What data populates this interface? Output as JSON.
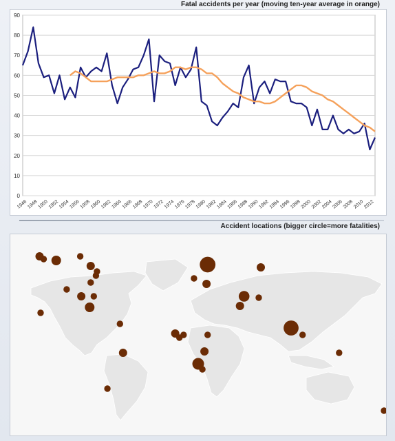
{
  "chart_title": "Fatal accidents per year (moving ten-year average in orange)",
  "map_title": "Accident locations (bigger circle=more fatalities)",
  "colors": {
    "annual_line": "#1b1f7e",
    "average_line": "#f5a15b",
    "grid": "#d8d8d8",
    "map_land": "#e6e6e6",
    "map_ocean": "#f7f7f7",
    "bubble": "#6b2c05"
  },
  "chart_data": [
    {
      "type": "line",
      "title": "Fatal accidents per year (moving ten-year average in orange)",
      "xlabel": "",
      "ylabel": "",
      "ylim": [
        0,
        90
      ],
      "yticks": [
        0,
        10,
        20,
        30,
        40,
        50,
        60,
        70,
        80,
        90
      ],
      "xlim": [
        1946,
        2013
      ],
      "xticks": [
        1946,
        1948,
        1950,
        1952,
        1954,
        1956,
        1958,
        1960,
        1962,
        1964,
        1966,
        1968,
        1970,
        1972,
        1974,
        1976,
        1978,
        1980,
        1982,
        1984,
        1986,
        1988,
        1990,
        1992,
        1994,
        1996,
        1998,
        2000,
        2002,
        2004,
        2006,
        2008,
        2010,
        2012
      ],
      "grid": true,
      "legend": "none",
      "series": [
        {
          "color": "#1b1f7e",
          "x": [
            1946,
            1947,
            1948,
            1949,
            1950,
            1951,
            1952,
            1953,
            1954,
            1955,
            1956,
            1957,
            1958,
            1959,
            1960,
            1961,
            1962,
            1963,
            1964,
            1965,
            1966,
            1967,
            1968,
            1969,
            1970,
            1971,
            1972,
            1973,
            1974,
            1975,
            1976,
            1977,
            1978,
            1979,
            1980,
            1981,
            1982,
            1983,
            1984,
            1985,
            1986,
            1987,
            1988,
            1989,
            1990,
            1991,
            1992,
            1993,
            1994,
            1995,
            1996,
            1997,
            1998,
            1999,
            2000,
            2001,
            2002,
            2003,
            2004,
            2005,
            2006,
            2007,
            2008,
            2009,
            2010,
            2011,
            2012,
            2013
          ],
          "y": [
            65,
            72,
            84,
            66,
            59,
            60,
            51,
            60,
            48,
            54,
            49,
            64,
            59,
            62,
            64,
            62,
            71,
            55,
            46,
            54,
            58,
            63,
            64,
            70,
            78,
            47,
            70,
            67,
            66,
            55,
            64,
            59,
            63,
            74,
            47,
            45,
            37,
            35,
            39,
            42,
            46,
            44,
            59,
            65,
            46,
            54,
            57,
            51,
            58,
            57,
            57,
            47,
            46,
            46,
            44,
            35,
            43,
            33,
            33,
            40,
            33,
            31,
            33,
            31,
            32,
            36,
            23,
            29
          ]
        },
        {
          "color": "#f5a15b",
          "x": [
            1955,
            1956,
            1957,
            1958,
            1959,
            1960,
            1961,
            1962,
            1963,
            1964,
            1965,
            1966,
            1967,
            1968,
            1969,
            1970,
            1971,
            1972,
            1973,
            1974,
            1975,
            1976,
            1977,
            1978,
            1979,
            1980,
            1981,
            1982,
            1983,
            1984,
            1985,
            1986,
            1987,
            1988,
            1989,
            1990,
            1991,
            1992,
            1993,
            1994,
            1995,
            1996,
            1997,
            1998,
            1999,
            2000,
            2001,
            2002,
            2003,
            2004,
            2005,
            2006,
            2007,
            2008,
            2009,
            2010,
            2011,
            2012,
            2013
          ],
          "y": [
            60,
            62,
            61,
            59,
            57,
            57,
            57,
            57,
            58,
            59,
            59,
            59,
            59,
            60,
            60,
            61,
            62,
            61,
            61,
            62,
            64,
            64,
            63,
            64,
            64,
            63,
            61,
            61,
            59,
            56,
            54,
            52,
            51,
            49,
            48,
            47,
            47,
            46,
            46,
            47,
            49,
            51,
            53,
            55,
            55,
            54,
            52,
            51,
            50,
            48,
            47,
            45,
            43,
            41,
            39,
            37,
            35,
            34,
            32
          ]
        }
      ]
    },
    {
      "type": "scatter",
      "title": "Accident locations (bigger circle=more fatalities)",
      "legend": "none",
      "points": [
        {
          "lon": -152,
          "lat": 62,
          "size": 2
        },
        {
          "lon": -148,
          "lat": 60,
          "size": 1
        },
        {
          "lon": -136,
          "lat": 59,
          "size": 3
        },
        {
          "lon": -113,
          "lat": 62,
          "size": 1
        },
        {
          "lon": -103,
          "lat": 55,
          "size": 2
        },
        {
          "lon": -97,
          "lat": 51,
          "size": 1
        },
        {
          "lon": -98,
          "lat": 48,
          "size": 1
        },
        {
          "lon": -103,
          "lat": 43,
          "size": 1
        },
        {
          "lon": -126,
          "lat": 38,
          "size": 1
        },
        {
          "lon": -112,
          "lat": 33,
          "size": 2
        },
        {
          "lon": -100,
          "lat": 33,
          "size": 1
        },
        {
          "lon": -104,
          "lat": 25,
          "size": 3
        },
        {
          "lon": -151,
          "lat": 21,
          "size": 1
        },
        {
          "lon": -75,
          "lat": 13,
          "size": 1
        },
        {
          "lon": -72,
          "lat": -8,
          "size": 2
        },
        {
          "lon": -87,
          "lat": -34,
          "size": 1
        },
        {
          "lon": 9,
          "lat": 56,
          "size": 10
        },
        {
          "lon": -4,
          "lat": 46,
          "size": 1
        },
        {
          "lon": 8,
          "lat": 42,
          "size": 2
        },
        {
          "lon": 44,
          "lat": 33,
          "size": 4
        },
        {
          "lon": 40,
          "lat": 26,
          "size": 2
        },
        {
          "lon": 60,
          "lat": 54,
          "size": 2
        },
        {
          "lon": 58,
          "lat": 32,
          "size": 1
        },
        {
          "lon": 89,
          "lat": 10,
          "size": 9
        },
        {
          "lon": 100,
          "lat": 5,
          "size": 1
        },
        {
          "lon": -22,
          "lat": 6,
          "size": 2
        },
        {
          "lon": -18,
          "lat": 3,
          "size": 1
        },
        {
          "lon": -14,
          "lat": 5,
          "size": 1
        },
        {
          "lon": 9,
          "lat": 5,
          "size": 1
        },
        {
          "lon": 0,
          "lat": -16,
          "size": 5
        },
        {
          "lon": 6,
          "lat": -7,
          "size": 2
        },
        {
          "lon": 4,
          "lat": -20,
          "size": 1
        },
        {
          "lon": 135,
          "lat": -8,
          "size": 1
        },
        {
          "lon": 178,
          "lat": -50,
          "size": 1
        }
      ]
    }
  ]
}
